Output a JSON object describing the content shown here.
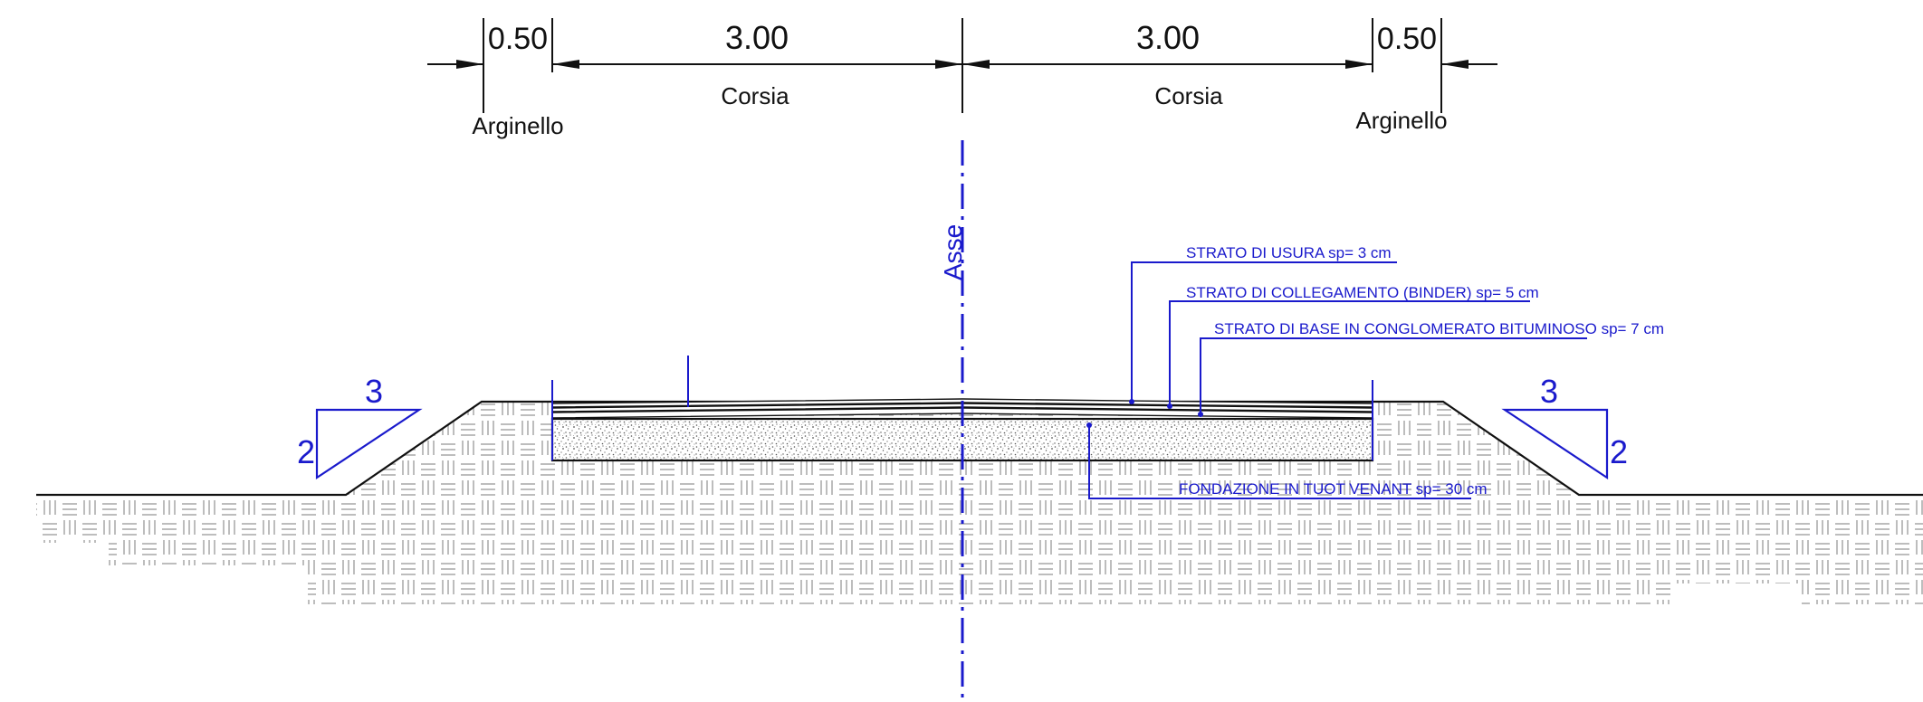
{
  "dimensions": [
    {
      "value": "0.50",
      "label": "Arginello"
    },
    {
      "value": "3.00",
      "label": "Corsia"
    },
    {
      "value": "3.00",
      "label": "Corsia"
    },
    {
      "value": "0.50",
      "label": "Arginello"
    }
  ],
  "axis_label": "Asse",
  "layers": {
    "usura": "STRATO DI USURA sp= 3 cm",
    "binder": "STRATO DI COLLEGAMENTO (BINDER) sp= 5 cm",
    "base": "STRATO DI BASE IN CONGLOMERATO BITUMINOSO sp= 7 cm",
    "fondazione": "FONDAZIONE IN TUOT VENANT sp= 30 cm"
  },
  "slopes": {
    "left": {
      "horizontal": "3",
      "vertical": "2"
    },
    "right": {
      "horizontal": "3",
      "vertical": "2"
    }
  },
  "colors": {
    "annotation": "#1a1acc",
    "line": "#111111",
    "hatch": "#bdbdbd"
  }
}
